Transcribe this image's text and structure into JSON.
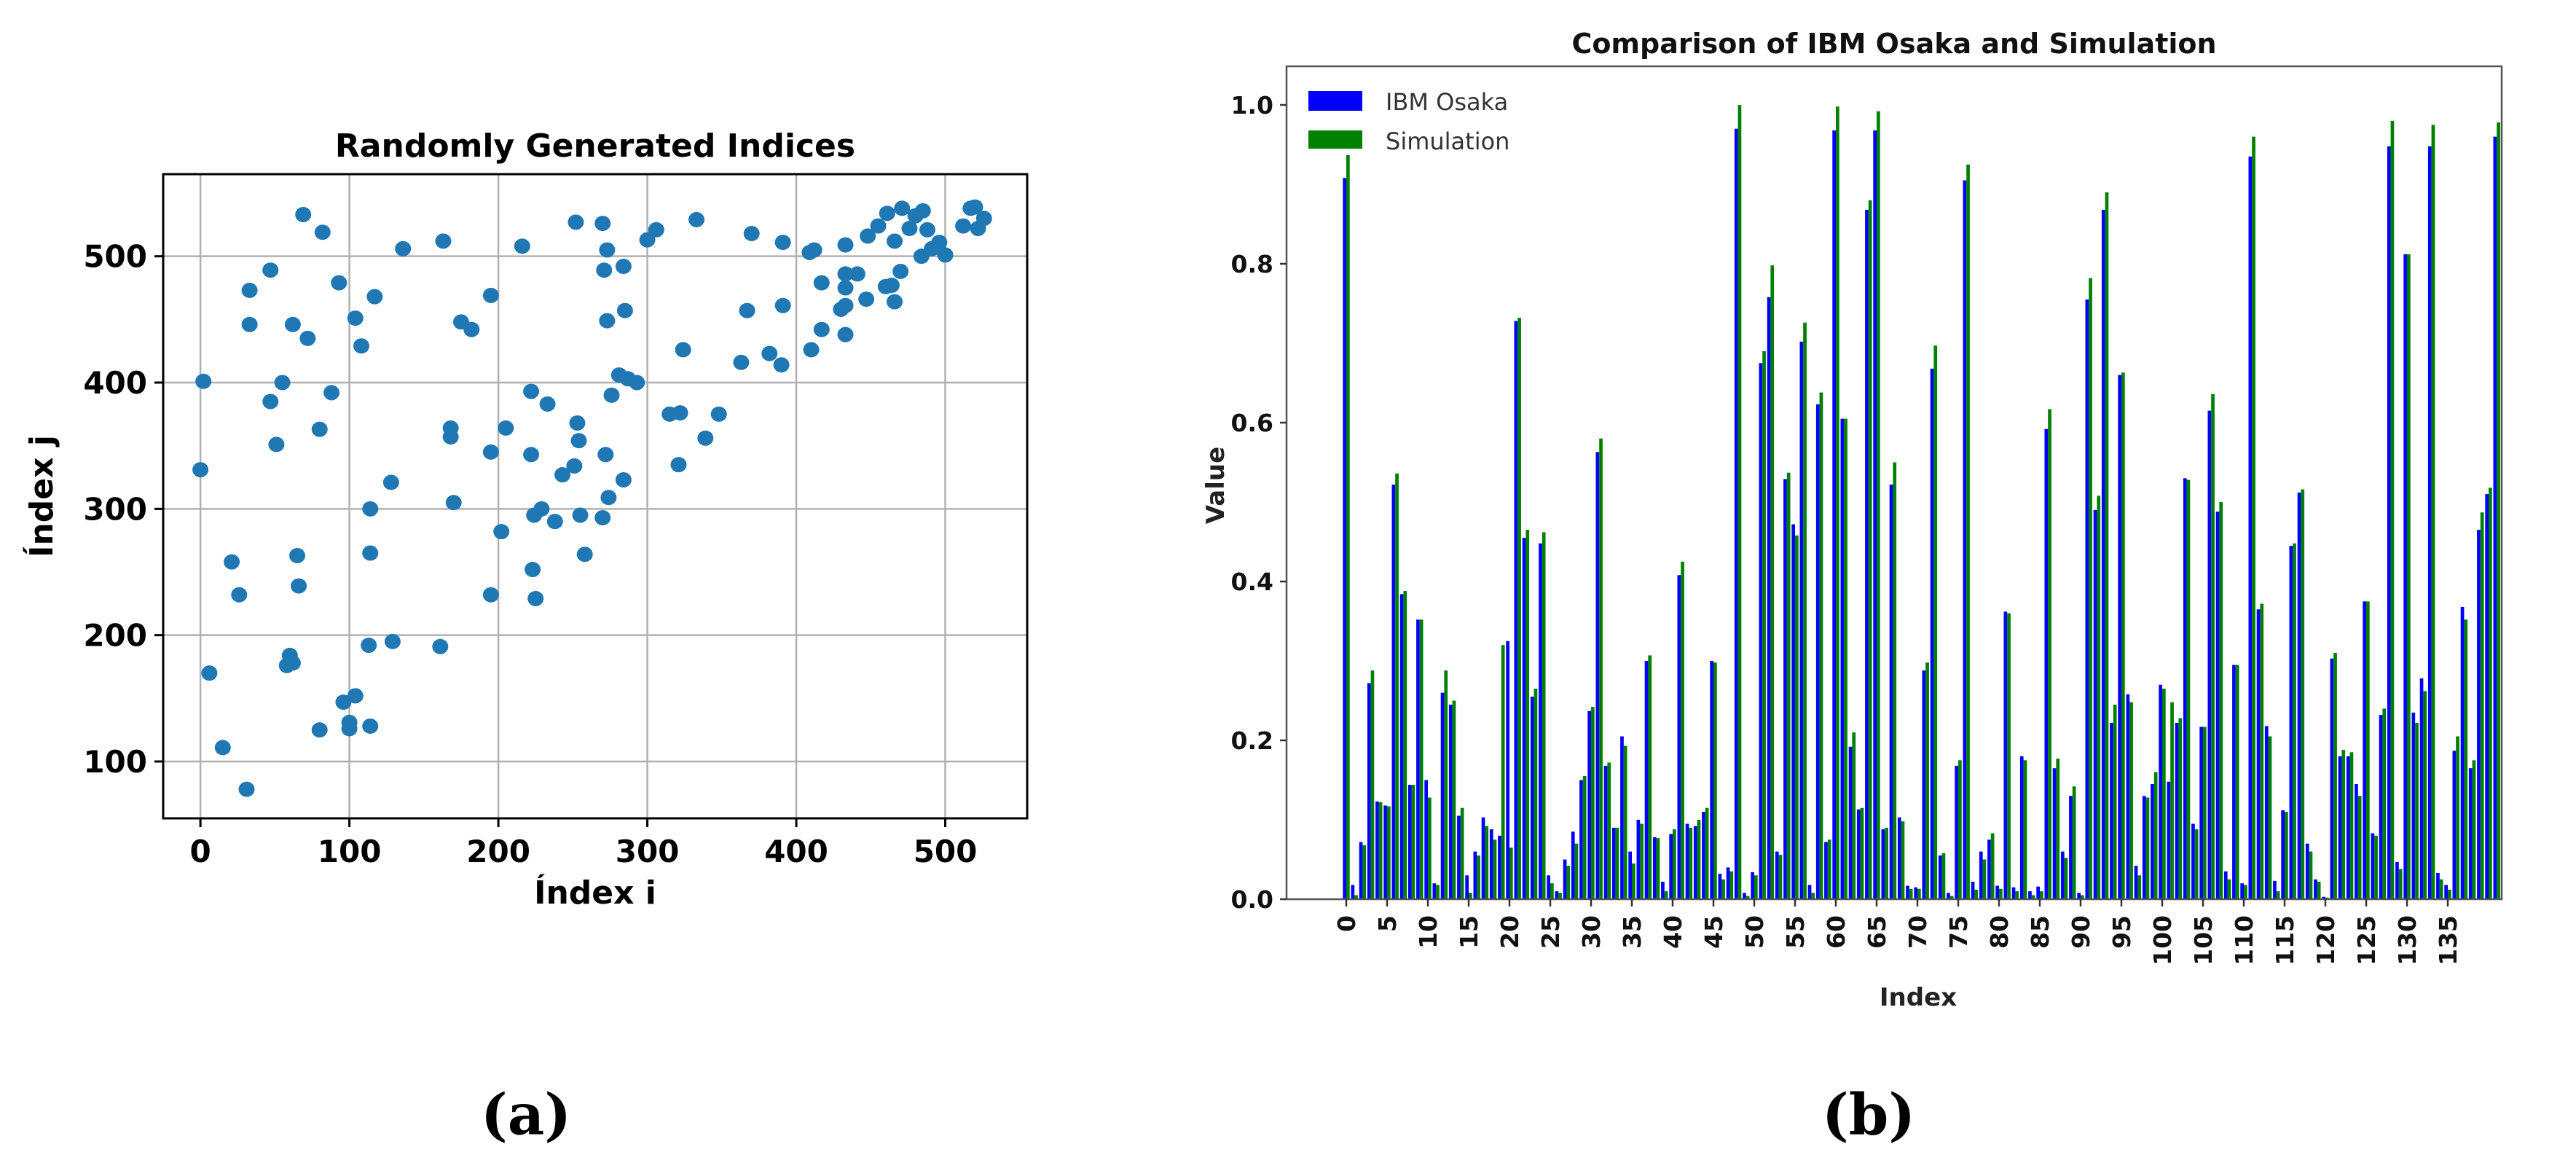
{
  "figure": {
    "panel_a_label": "(a)",
    "panel_b_label": "(b)"
  },
  "chart_data": [
    {
      "type": "scatter",
      "title": "Randomly Generated Indices",
      "xlabel": "Índex i",
      "ylabel": "Índex j",
      "xlim": [
        -25,
        555
      ],
      "ylim": [
        55,
        565
      ],
      "xticks": [
        0,
        100,
        200,
        300,
        400,
        500
      ],
      "yticks": [
        100,
        200,
        300,
        400,
        500
      ],
      "grid": true,
      "marker_color": "#1f77b4",
      "points": [
        [
          0,
          331
        ],
        [
          2,
          401
        ],
        [
          6,
          170
        ],
        [
          15,
          111
        ],
        [
          21,
          258
        ],
        [
          26,
          232
        ],
        [
          31,
          78
        ],
        [
          33,
          473
        ],
        [
          33,
          446
        ],
        [
          47,
          489
        ],
        [
          47,
          385
        ],
        [
          51,
          351
        ],
        [
          55,
          400
        ],
        [
          58,
          176
        ],
        [
          60,
          184
        ],
        [
          62,
          178
        ],
        [
          62,
          446
        ],
        [
          65,
          263
        ],
        [
          66,
          239
        ],
        [
          69,
          533
        ],
        [
          72,
          435
        ],
        [
          80,
          363
        ],
        [
          82,
          519
        ],
        [
          80,
          125
        ],
        [
          88,
          392
        ],
        [
          93,
          479
        ],
        [
          96,
          147
        ],
        [
          100,
          131
        ],
        [
          100,
          126
        ],
        [
          104,
          152
        ],
        [
          104,
          451
        ],
        [
          108,
          429
        ],
        [
          113,
          192
        ],
        [
          114,
          300
        ],
        [
          114,
          265
        ],
        [
          114,
          128
        ],
        [
          117,
          468
        ],
        [
          128,
          321
        ],
        [
          129,
          195
        ],
        [
          136,
          506
        ],
        [
          161,
          191
        ],
        [
          163,
          512
        ],
        [
          168,
          357
        ],
        [
          168,
          364
        ],
        [
          170,
          305
        ],
        [
          175,
          448
        ],
        [
          182,
          442
        ],
        [
          195,
          469
        ],
        [
          195,
          232
        ],
        [
          195,
          345
        ],
        [
          202,
          282
        ],
        [
          205,
          364
        ],
        [
          216,
          508
        ],
        [
          222,
          393
        ],
        [
          222,
          343
        ],
        [
          223,
          252
        ],
        [
          225,
          229
        ],
        [
          224,
          295
        ],
        [
          229,
          300
        ],
        [
          233,
          383
        ],
        [
          238,
          290
        ],
        [
          243,
          327
        ],
        [
          251,
          334
        ],
        [
          252,
          527
        ],
        [
          253,
          368
        ],
        [
          254,
          354
        ],
        [
          255,
          295
        ],
        [
          258,
          264
        ],
        [
          270,
          293
        ],
        [
          270,
          526
        ],
        [
          271,
          489
        ],
        [
          273,
          505
        ],
        [
          273,
          449
        ],
        [
          272,
          343
        ],
        [
          274,
          309
        ],
        [
          276,
          390
        ],
        [
          281,
          406
        ],
        [
          284,
          492
        ],
        [
          285,
          457
        ],
        [
          284,
          323
        ],
        [
          287,
          403
        ],
        [
          293,
          400
        ],
        [
          300,
          513
        ],
        [
          306,
          521
        ],
        [
          315,
          375
        ],
        [
          322,
          376
        ],
        [
          321,
          335
        ],
        [
          324,
          426
        ],
        [
          333,
          529
        ],
        [
          339,
          356
        ],
        [
          348,
          375
        ],
        [
          363,
          416
        ],
        [
          367,
          457
        ],
        [
          370,
          518
        ],
        [
          382,
          423
        ],
        [
          391,
          461
        ],
        [
          390,
          414
        ],
        [
          391,
          511
        ],
        [
          409,
          503
        ],
        [
          412,
          505
        ],
        [
          410,
          426
        ],
        [
          417,
          479
        ],
        [
          417,
          442
        ],
        [
          433,
          509
        ],
        [
          433,
          486
        ],
        [
          433,
          475
        ],
        [
          433,
          438
        ],
        [
          430,
          458
        ],
        [
          433,
          461
        ],
        [
          441,
          486
        ],
        [
          447,
          466
        ],
        [
          448,
          516
        ],
        [
          455,
          524
        ],
        [
          461,
          534
        ],
        [
          460,
          476
        ],
        [
          464,
          477
        ],
        [
          466,
          512
        ],
        [
          466,
          464
        ],
        [
          470,
          488
        ],
        [
          471,
          538
        ],
        [
          476,
          522
        ],
        [
          480,
          532
        ],
        [
          484,
          500
        ],
        [
          485,
          536
        ],
        [
          488,
          521
        ],
        [
          491,
          506
        ],
        [
          496,
          511
        ],
        [
          500,
          501
        ],
        [
          512,
          524
        ],
        [
          517,
          538
        ],
        [
          522,
          522
        ],
        [
          520,
          539
        ],
        [
          526,
          530
        ]
      ]
    },
    {
      "type": "bar",
      "title": "Comparison of IBM Osaka and Simulation",
      "xlabel": "Index",
      "ylabel": "Value",
      "ylim": [
        0,
        1.05
      ],
      "yticks": [
        0.0,
        0.2,
        0.4,
        0.6,
        0.8,
        1.0
      ],
      "ytick_labels": [
        "0.0",
        "0.2",
        "0.4",
        "0.6",
        "0.8",
        "1.0"
      ],
      "xticks": [
        0,
        5,
        10,
        15,
        20,
        25,
        30,
        35,
        40,
        45,
        50,
        55,
        60,
        65,
        70,
        75,
        80,
        85,
        90,
        95,
        100,
        105,
        110,
        115,
        120,
        125,
        130,
        135
      ],
      "grid": false,
      "legend_position": "upper left",
      "series": [
        {
          "name": "IBM Osaka",
          "color": "#0000ff",
          "values": [
            0.908,
            0.018,
            0.072,
            0.272,
            0.123,
            0.118,
            0.522,
            0.384,
            0.144,
            0.352,
            0.15,
            0.02,
            0.26,
            0.245,
            0.105,
            0.03,
            0.06,
            0.103,
            0.088,
            0.08,
            0.325,
            0.728,
            0.455,
            0.255,
            0.448,
            0.03,
            0.01,
            0.05,
            0.085,
            0.15,
            0.237,
            0.563,
            0.168,
            0.09,
            0.205,
            0.06,
            0.1,
            0.3,
            0.078,
            0.022,
            0.082,
            0.408,
            0.095,
            0.092,
            0.11,
            0.3,
            0.032,
            0.04,
            0.97,
            0.008,
            0.034,
            0.675,
            0.758,
            0.06,
            0.529,
            0.472,
            0.702,
            0.018,
            0.623,
            0.072,
            0.968,
            0.605,
            0.192,
            0.113,
            0.868,
            0.968,
            0.088,
            0.522,
            0.103,
            0.017,
            0.015,
            0.288,
            0.668,
            0.055,
            0.008,
            0.168,
            0.905,
            0.022,
            0.06,
            0.075,
            0.017,
            0.362,
            0.015,
            0.18,
            0.01,
            0.016,
            0.592,
            0.165,
            0.06,
            0.13,
            0.008,
            0.755,
            0.49,
            0.868,
            0.222,
            0.66,
            0.258,
            0.042,
            0.13,
            0.145,
            0.27,
            0.148,
            0.222,
            0.53,
            0.095,
            0.217,
            0.615,
            0.488,
            0.035,
            0.295,
            0.02,
            0.935,
            0.365,
            0.218,
            0.023,
            0.112,
            0.445,
            0.512,
            0.07,
            0.025,
            0.003,
            0.303,
            0.18,
            0.18,
            0.145,
            0.375,
            0.083,
            0.232,
            0.948,
            0.047,
            0.812,
            0.235,
            0.278,
            0.948,
            0.033,
            0.018,
            0.187,
            0.368,
            0.165,
            0.465,
            0.51,
            0.96
          ]
        },
        {
          "name": "Simulation",
          "color": "#008000",
          "values": [
            0.937,
            0.005,
            0.068,
            0.288,
            0.122,
            0.117,
            0.536,
            0.388,
            0.144,
            0.352,
            0.128,
            0.018,
            0.288,
            0.25,
            0.115,
            0.008,
            0.055,
            0.092,
            0.075,
            0.32,
            0.065,
            0.732,
            0.465,
            0.265,
            0.462,
            0.02,
            0.008,
            0.042,
            0.07,
            0.155,
            0.242,
            0.58,
            0.172,
            0.09,
            0.193,
            0.045,
            0.095,
            0.307,
            0.077,
            0.01,
            0.088,
            0.425,
            0.09,
            0.1,
            0.115,
            0.298,
            0.025,
            0.035,
            1.0,
            0.004,
            0.03,
            0.69,
            0.798,
            0.056,
            0.537,
            0.458,
            0.726,
            0.008,
            0.638,
            0.075,
            0.998,
            0.605,
            0.21,
            0.115,
            0.88,
            0.992,
            0.09,
            0.55,
            0.098,
            0.013,
            0.013,
            0.298,
            0.697,
            0.058,
            0.004,
            0.175,
            0.925,
            0.012,
            0.05,
            0.083,
            0.013,
            0.36,
            0.01,
            0.175,
            0.005,
            0.01,
            0.617,
            0.177,
            0.052,
            0.142,
            0.005,
            0.782,
            0.508,
            0.89,
            0.245,
            0.663,
            0.248,
            0.03,
            0.128,
            0.16,
            0.265,
            0.248,
            0.228,
            0.528,
            0.088,
            0.217,
            0.636,
            0.5,
            0.025,
            0.295,
            0.018,
            0.96,
            0.372,
            0.205,
            0.01,
            0.11,
            0.448,
            0.516,
            0.06,
            0.022,
            0.002,
            0.31,
            0.188,
            0.185,
            0.13,
            0.375,
            0.08,
            0.24,
            0.98,
            0.038,
            0.812,
            0.222,
            0.262,
            0.975,
            0.025,
            0.012,
            0.205,
            0.352,
            0.175,
            0.487,
            0.518,
            0.978
          ]
        }
      ]
    }
  ]
}
